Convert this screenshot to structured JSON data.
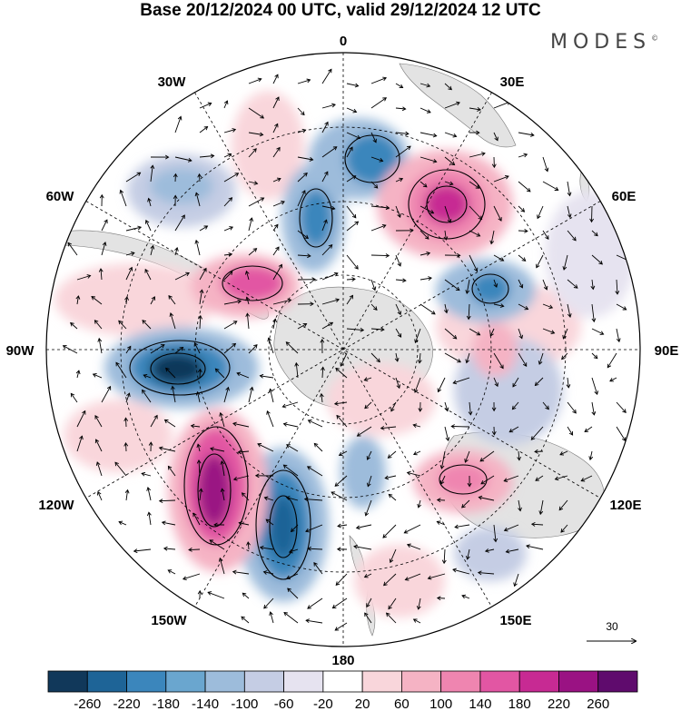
{
  "title": "Base 20/12/2024 00 UTC, valid 29/12/2024 12 UTC",
  "brand": "MODES",
  "brand_mark": "©",
  "longitude_labels": {
    "n0": "0",
    "n30e": "30E",
    "n60e": "60E",
    "n90e": "90E",
    "n120e": "120E",
    "n150e": "150E",
    "n180": "180",
    "n150w": "150W",
    "n120w": "120W",
    "n90w": "90W",
    "n60w": "60W",
    "n30w": "30W"
  },
  "vector_reference": "30",
  "colorbar": {
    "levels": [
      "-260",
      "-220",
      "-180",
      "-140",
      "-100",
      "-60",
      "-20",
      "20",
      "60",
      "100",
      "140",
      "180",
      "220",
      "260"
    ],
    "colors": [
      "#11385a",
      "#1e6497",
      "#3b86bc",
      "#6aa6cf",
      "#9dbcdb",
      "#c5cde4",
      "#e6e3f0",
      "#ffffff",
      "#f9d6db",
      "#f5b3c4",
      "#ef85b0",
      "#e256a3",
      "#c72a93",
      "#9a1283",
      "#5f0b6d"
    ]
  },
  "map_colors": {
    "land": "#e3e3e3",
    "ocean": "#ffffff",
    "positive": "#e256a3",
    "negative": "#1e6497"
  }
}
